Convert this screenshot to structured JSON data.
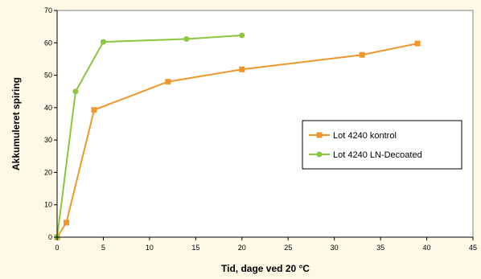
{
  "chart_data": {
    "type": "line",
    "xlabel": "Tid, dage ved 20 °C",
    "ylabel": "Akkumuleret spiring",
    "xlim": [
      0,
      45
    ],
    "ylim": [
      0,
      70
    ],
    "xticks": [
      0,
      5,
      10,
      15,
      20,
      25,
      30,
      35,
      40,
      45
    ],
    "yticks": [
      0,
      10,
      20,
      30,
      40,
      50,
      60,
      70
    ],
    "grid": false,
    "legend_position": "right",
    "series": [
      {
        "name": "Lot 4240 kontrol",
        "color": "#f0962a",
        "marker": "square",
        "x": [
          0,
          1,
          4,
          12,
          20,
          33,
          39
        ],
        "y": [
          0,
          4.5,
          39.3,
          48,
          51.8,
          56.3,
          59.8
        ]
      },
      {
        "name": "Lot 4240 LN-Decoated",
        "color": "#8cc63f",
        "marker": "circle",
        "x": [
          0,
          2,
          5,
          14,
          20
        ],
        "y": [
          0,
          45,
          60.3,
          61.2,
          62.3
        ]
      }
    ]
  }
}
